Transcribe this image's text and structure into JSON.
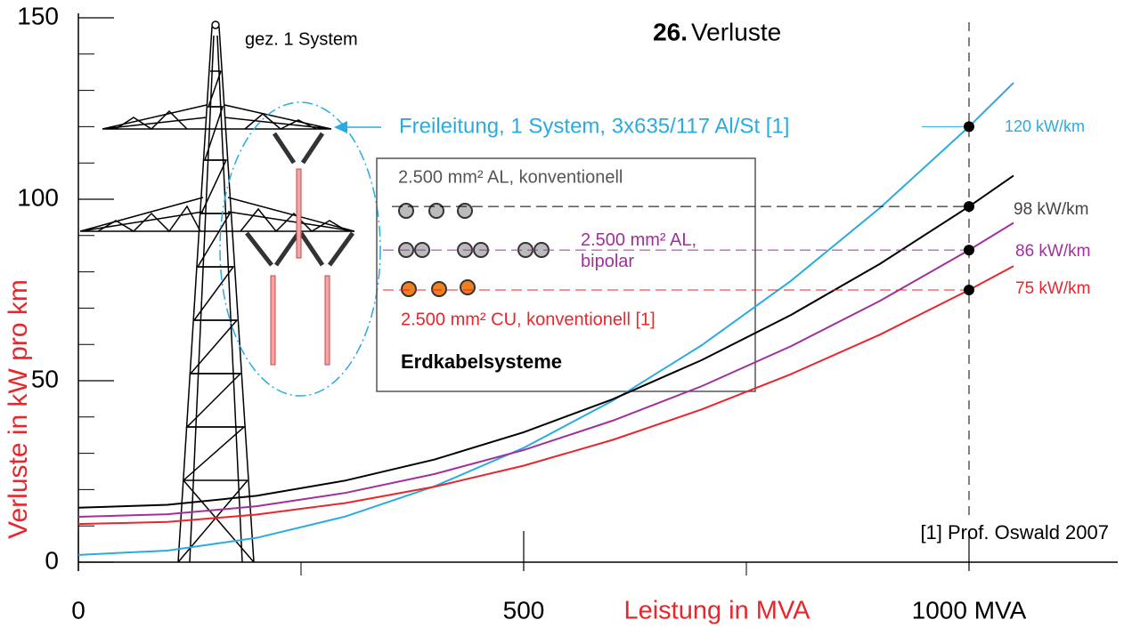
{
  "chart_data": {
    "type": "line",
    "title_number": "26.",
    "title": "Verluste",
    "x_label": "Leistung in MVA",
    "y_label": "Verluste in kW pro km",
    "annotations": {
      "tower": "gez. 1 System",
      "box_title": "Erdkabelsysteme",
      "source": "[1] Prof. Oswald 2007"
    },
    "x": [
      0,
      100,
      200,
      300,
      400,
      500,
      600,
      700,
      800,
      900,
      1000,
      1050
    ],
    "series": [
      {
        "name": "Freileitung, 1 System, 3x635/117 Al/St [1]",
        "color": "#29abe2",
        "values": [
          2,
          3.2,
          6.7,
          12.6,
          20.9,
          31.5,
          44.5,
          59.8,
          77.5,
          97.6,
          120,
          132.1
        ],
        "value_labels": [
          null,
          null,
          null,
          null,
          null,
          null,
          null,
          null,
          null,
          null,
          "120 kW/km",
          null
        ]
      },
      {
        "name": "2.500 mm² AL,  konventionell",
        "color": "#000000",
        "values": [
          15,
          15.8,
          18.3,
          22.5,
          28.3,
          35.8,
          44.9,
          55.7,
          68.1,
          82.2,
          98,
          106.5
        ],
        "value_labels": [
          null,
          null,
          null,
          null,
          null,
          null,
          null,
          null,
          null,
          null,
          "98 kW/km",
          null
        ]
      },
      {
        "name": "2.500 mm² AL, bipolar",
        "color": "#a0309a",
        "values": [
          12.5,
          13.2,
          15.4,
          19.1,
          24.3,
          30.9,
          39,
          48.5,
          59.5,
          72,
          86,
          93.5
        ],
        "value_labels": [
          null,
          null,
          null,
          null,
          null,
          null,
          null,
          null,
          null,
          null,
          "86 kW/km",
          null
        ]
      },
      {
        "name": "2.500 mm² CU,  konventionell [1]",
        "color": "#e8262b",
        "values": [
          10.5,
          11.1,
          13.1,
          16.3,
          20.8,
          26.6,
          33.7,
          42.1,
          51.8,
          62.7,
          75,
          81.6
        ],
        "value_labels": [
          null,
          null,
          null,
          null,
          null,
          null,
          null,
          null,
          null,
          null,
          "75 kW/km",
          null
        ]
      }
    ],
    "xlim": [
      0,
      1167
    ],
    "ylim": [
      0,
      150
    ],
    "xticks": [
      0,
      500,
      {
        "value": 1000,
        "label": "1000 MVA"
      }
    ],
    "xticks_minor": [
      250,
      750
    ],
    "yticks": [
      0,
      50,
      100,
      150
    ],
    "yticks_minor": [
      10,
      20,
      30,
      40,
      60,
      70,
      80,
      90,
      110,
      120,
      130,
      140
    ]
  }
}
